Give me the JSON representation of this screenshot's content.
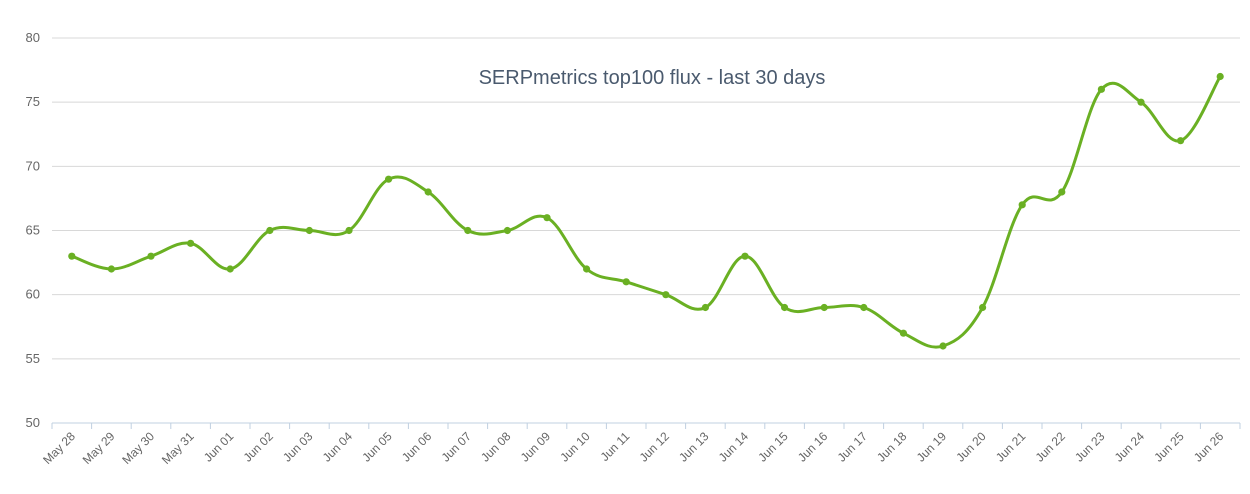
{
  "chart_data": {
    "type": "line",
    "title": "SERPmetrics top100 flux - last 30 days",
    "xlabel": "",
    "ylabel": "",
    "ylim": [
      50,
      80
    ],
    "yticks": [
      50,
      55,
      60,
      65,
      70,
      75,
      80
    ],
    "grid": true,
    "legend": "none",
    "categories": [
      "May 28",
      "May 29",
      "May 30",
      "May 31",
      "Jun 01",
      "Jun 02",
      "Jun 03",
      "Jun 04",
      "Jun 05",
      "Jun 06",
      "Jun 07",
      "Jun 08",
      "Jun 09",
      "Jun 10",
      "Jun 11",
      "Jun 12",
      "Jun 13",
      "Jun 14",
      "Jun 15",
      "Jun 16",
      "Jun 17",
      "Jun 18",
      "Jun 19",
      "Jun 20",
      "Jun 21",
      "Jun 22",
      "Jun 23",
      "Jun 24",
      "Jun 25",
      "Jun 26"
    ],
    "series": [
      {
        "color": "#6ab023",
        "values": [
          63,
          62,
          63,
          64,
          62,
          65,
          65,
          65,
          69,
          68,
          65,
          65,
          66,
          62,
          61,
          60,
          59,
          63,
          59,
          59,
          59,
          57,
          56,
          59,
          67,
          68,
          76,
          75,
          72,
          77
        ]
      }
    ]
  }
}
